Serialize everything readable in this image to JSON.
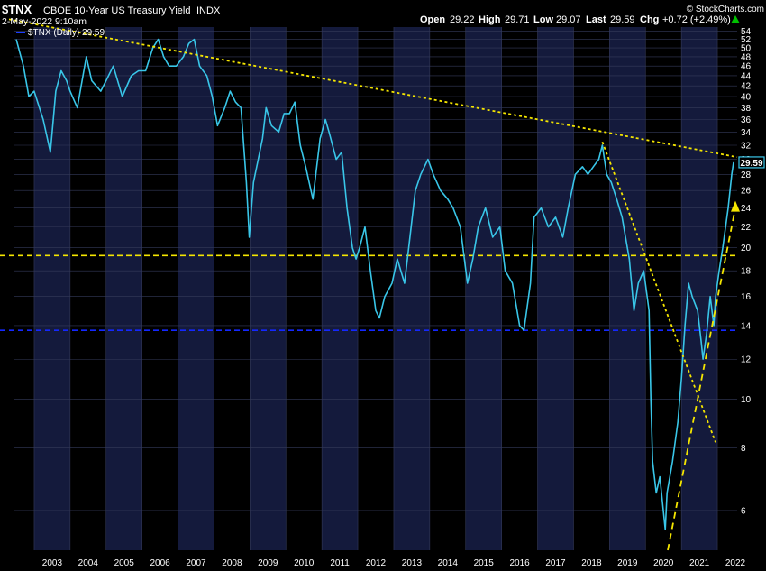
{
  "header": {
    "symbol": "$TNX",
    "name": "CBOE 10-Year US Treasury Yield",
    "exchange": "INDX",
    "date": "2-May-2022 9:10am",
    "watermark": "© StockCharts.com",
    "ohlc": [
      {
        "label": "Open",
        "value": "29.22"
      },
      {
        "label": "High",
        "value": "29.71"
      },
      {
        "label": "Low",
        "value": "29.07"
      },
      {
        "label": "Last",
        "value": "29.59"
      },
      {
        "label": "Chg",
        "value": "+0.72 (+2.49%)"
      }
    ],
    "chg_arrow_color": "#00c000"
  },
  "legend": {
    "label": "$TNX (Daily) 29.59",
    "color": "#1a3cff"
  },
  "chart_data": {
    "type": "line",
    "scale": "log",
    "ylim": [
      5.0,
      55.0
    ],
    "xlim": [
      2002.45,
      2022.55
    ],
    "x_ticks": [
      "2003",
      "2004",
      "2005",
      "2006",
      "2007",
      "2008",
      "2009",
      "2010",
      "2011",
      "2012",
      "2013",
      "2014",
      "2015",
      "2016",
      "2017",
      "2018",
      "2019",
      "2020",
      "2021",
      "2022"
    ],
    "y_ticks": [
      6,
      8,
      10,
      12,
      14,
      16,
      18,
      20,
      22,
      24,
      26,
      28,
      30,
      32,
      34,
      36,
      38,
      40,
      42,
      44,
      46,
      48,
      50,
      52,
      54
    ],
    "last_value": "29.59",
    "colors": {
      "line": "#39c6e8",
      "background": "#000000",
      "band": "#141a3c",
      "grid": "#343a5a",
      "trend": "#f5e600",
      "support": "#1428ff"
    },
    "series": [
      {
        "name": "$TNX (Daily)",
        "points": [
          [
            2002.5,
            52
          ],
          [
            2002.7,
            46
          ],
          [
            2002.85,
            40
          ],
          [
            2003.0,
            41
          ],
          [
            2003.25,
            36
          ],
          [
            2003.45,
            31
          ],
          [
            2003.6,
            41
          ],
          [
            2003.75,
            45
          ],
          [
            2003.9,
            43
          ],
          [
            2004.0,
            41
          ],
          [
            2004.2,
            38
          ],
          [
            2004.45,
            48
          ],
          [
            2004.6,
            43
          ],
          [
            2004.85,
            41
          ],
          [
            2005.0,
            43
          ],
          [
            2005.2,
            46
          ],
          [
            2005.45,
            40
          ],
          [
            2005.7,
            44
          ],
          [
            2005.9,
            45
          ],
          [
            2006.1,
            45
          ],
          [
            2006.3,
            50
          ],
          [
            2006.45,
            52
          ],
          [
            2006.6,
            48
          ],
          [
            2006.75,
            46
          ],
          [
            2006.95,
            46
          ],
          [
            2007.15,
            48
          ],
          [
            2007.3,
            51
          ],
          [
            2007.45,
            52
          ],
          [
            2007.6,
            46
          ],
          [
            2007.8,
            44
          ],
          [
            2007.95,
            40
          ],
          [
            2008.1,
            35
          ],
          [
            2008.3,
            38
          ],
          [
            2008.45,
            41
          ],
          [
            2008.6,
            39
          ],
          [
            2008.75,
            38
          ],
          [
            2008.9,
            27
          ],
          [
            2008.98,
            21
          ],
          [
            2009.1,
            27
          ],
          [
            2009.35,
            33
          ],
          [
            2009.45,
            38
          ],
          [
            2009.6,
            35
          ],
          [
            2009.8,
            34
          ],
          [
            2009.95,
            37
          ],
          [
            2010.1,
            37
          ],
          [
            2010.25,
            39
          ],
          [
            2010.4,
            32
          ],
          [
            2010.55,
            29
          ],
          [
            2010.75,
            25
          ],
          [
            2010.95,
            33
          ],
          [
            2011.1,
            36
          ],
          [
            2011.2,
            34
          ],
          [
            2011.4,
            30
          ],
          [
            2011.55,
            31
          ],
          [
            2011.7,
            24
          ],
          [
            2011.85,
            20
          ],
          [
            2011.95,
            19
          ],
          [
            2012.05,
            20
          ],
          [
            2012.2,
            22
          ],
          [
            2012.35,
            18
          ],
          [
            2012.5,
            15
          ],
          [
            2012.6,
            14.5
          ],
          [
            2012.75,
            16
          ],
          [
            2012.95,
            17
          ],
          [
            2013.1,
            19
          ],
          [
            2013.3,
            17
          ],
          [
            2013.45,
            21
          ],
          [
            2013.6,
            26
          ],
          [
            2013.75,
            28
          ],
          [
            2013.95,
            30
          ],
          [
            2014.1,
            28
          ],
          [
            2014.3,
            26
          ],
          [
            2014.5,
            25
          ],
          [
            2014.65,
            24
          ],
          [
            2014.85,
            22
          ],
          [
            2015.05,
            17
          ],
          [
            2015.2,
            19
          ],
          [
            2015.35,
            22
          ],
          [
            2015.55,
            24
          ],
          [
            2015.75,
            21
          ],
          [
            2015.95,
            22
          ],
          [
            2016.1,
            18
          ],
          [
            2016.3,
            17
          ],
          [
            2016.5,
            14
          ],
          [
            2016.62,
            13.7
          ],
          [
            2016.8,
            17
          ],
          [
            2016.9,
            23
          ],
          [
            2017.1,
            24
          ],
          [
            2017.3,
            22
          ],
          [
            2017.5,
            23
          ],
          [
            2017.7,
            21
          ],
          [
            2017.85,
            24
          ],
          [
            2018.05,
            28
          ],
          [
            2018.25,
            29
          ],
          [
            2018.4,
            28
          ],
          [
            2018.55,
            29
          ],
          [
            2018.7,
            30
          ],
          [
            2018.8,
            32
          ],
          [
            2018.92,
            28
          ],
          [
            2019.05,
            27
          ],
          [
            2019.2,
            25
          ],
          [
            2019.35,
            23
          ],
          [
            2019.55,
            19
          ],
          [
            2019.68,
            15
          ],
          [
            2019.8,
            17
          ],
          [
            2019.95,
            18
          ],
          [
            2020.1,
            15
          ],
          [
            2020.15,
            10
          ],
          [
            2020.2,
            7.5
          ],
          [
            2020.3,
            6.5
          ],
          [
            2020.4,
            7
          ],
          [
            2020.55,
            5.5
          ],
          [
            2020.6,
            6.5
          ],
          [
            2020.75,
            7.5
          ],
          [
            2020.9,
            9
          ],
          [
            2021.0,
            11
          ],
          [
            2021.1,
            14
          ],
          [
            2021.2,
            17
          ],
          [
            2021.3,
            16
          ],
          [
            2021.45,
            15
          ],
          [
            2021.55,
            13
          ],
          [
            2021.6,
            12
          ],
          [
            2021.7,
            13.5
          ],
          [
            2021.8,
            16
          ],
          [
            2021.9,
            14
          ],
          [
            2021.95,
            16
          ],
          [
            2022.05,
            18
          ],
          [
            2022.15,
            20
          ],
          [
            2022.3,
            24
          ],
          [
            2022.4,
            28
          ],
          [
            2022.45,
            29.59
          ]
        ]
      }
    ],
    "lines": [
      {
        "type": "trend",
        "style": "dotted",
        "points": [
          [
            2002.3,
            57
          ],
          [
            2022.55,
            30.3
          ]
        ]
      },
      {
        "type": "trend",
        "style": "dotted",
        "points": [
          [
            2018.8,
            32.5
          ],
          [
            2021.95,
            8.2
          ]
        ]
      },
      {
        "type": "trend",
        "style": "dashed",
        "points": [
          [
            2020.62,
            5.0
          ],
          [
            2022.5,
            24
          ]
        ]
      },
      {
        "type": "level",
        "style": "dashed",
        "color": "#f5e600",
        "value": 19.3
      },
      {
        "type": "level",
        "style": "dashed",
        "color": "#1428ff",
        "value": 13.7
      }
    ]
  }
}
